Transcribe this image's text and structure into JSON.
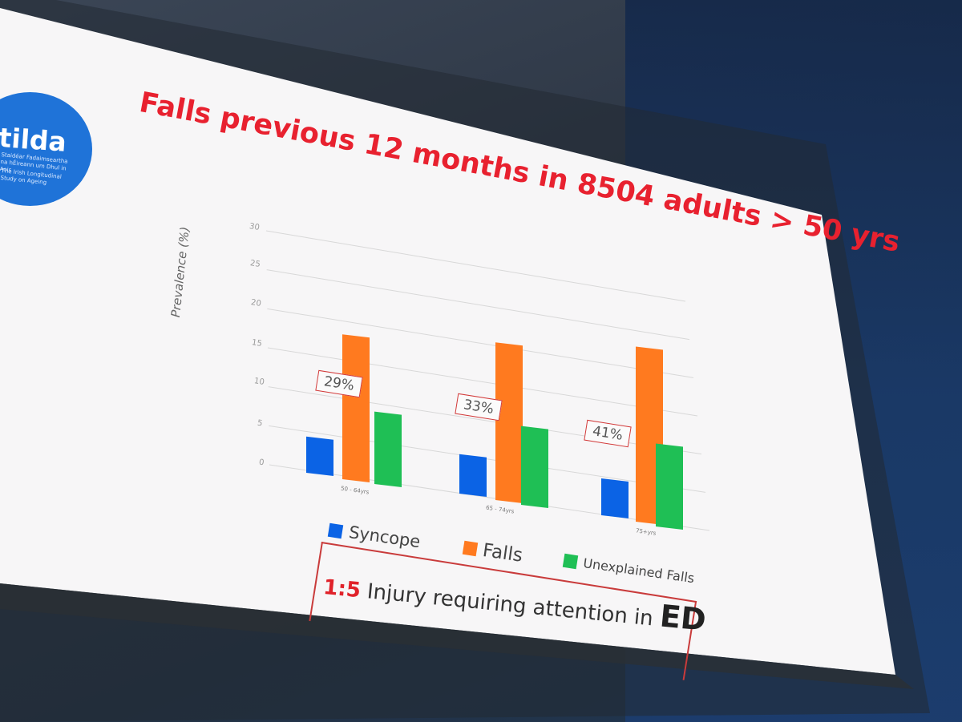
{
  "slide": {
    "title": "Falls previous 12 months in 8504 adults > 50 yrs",
    "logo": {
      "word": "tilda",
      "sub_irish": "Staidéar Fadaimseartha na hÉireann um Dhul in Aois",
      "sub_english": "The Irish Longitudinal Study on Ageing"
    },
    "injury_note": {
      "ratio": "1:5",
      "text": " Injury requiring attention in ",
      "emph": "ED"
    }
  },
  "chart_data": {
    "type": "bar",
    "ylabel": "Prevalence (%)",
    "ylim": [
      0,
      30
    ],
    "yticks": [
      "0",
      "5",
      "10",
      "15",
      "20",
      "25",
      "30"
    ],
    "categories": [
      "50 - 64yrs",
      "65 - 74yrs",
      "75+yrs"
    ],
    "series": [
      {
        "name": "Syncope",
        "values": [
          4,
          4,
          4
        ],
        "color": "#0b63e5"
      },
      {
        "name": "Falls",
        "values": [
          16,
          16,
          19
        ],
        "color": "#ff7a1f"
      },
      {
        "name": "Unexplained Falls",
        "values": [
          8,
          8,
          9
        ],
        "color": "#1fbf55"
      }
    ],
    "annotations": [
      "29%",
      "33%",
      "41%"
    ],
    "grid": true
  },
  "colors": {
    "accent_red": "#e8212f",
    "logo_blue": "#1f73d8"
  }
}
